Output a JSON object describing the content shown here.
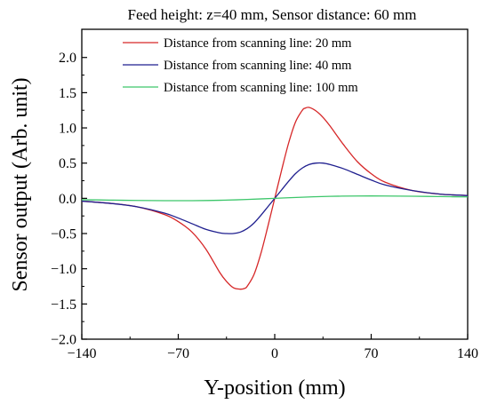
{
  "chart_data": {
    "type": "line",
    "title": "Feed height: z=40 mm, Sensor distance: 60 mm",
    "xlabel": "Y-position (mm)",
    "ylabel": "Sensor output (Arb. unit)",
    "xlim": [
      -140,
      140
    ],
    "ylim": [
      -2.0,
      2.4
    ],
    "xticks": [
      -140,
      -70,
      0,
      70,
      140
    ],
    "xtick_labels": [
      "−140",
      "−70",
      "0",
      "70",
      "140"
    ],
    "yticks": [
      -2.0,
      -1.5,
      -1.0,
      -0.5,
      0.0,
      0.5,
      1.0,
      1.5,
      2.0
    ],
    "ytick_labels": [
      "−2.0",
      "−1.5",
      "−1.0",
      "−0.5",
      "0.0",
      "0.5",
      "1.0",
      "1.5",
      "2.0"
    ],
    "grid": false,
    "legend_position": "top-right",
    "series": [
      {
        "name": "Distance from scanning line: 20 mm",
        "color": "#d62728",
        "x": [
          -140,
          -120,
          -100,
          -80,
          -70,
          -60,
          -50,
          -40,
          -35,
          -30,
          -25,
          -22,
          -20,
          -15,
          -10,
          -5,
          0,
          5,
          10,
          15,
          20,
          22,
          25,
          30,
          35,
          40,
          50,
          60,
          70,
          80,
          100,
          120,
          140
        ],
        "y": [
          -0.04,
          -0.07,
          -0.12,
          -0.23,
          -0.33,
          -0.48,
          -0.72,
          -1.05,
          -1.18,
          -1.27,
          -1.29,
          -1.28,
          -1.25,
          -1.08,
          -0.78,
          -0.4,
          0.0,
          0.4,
          0.78,
          1.08,
          1.25,
          1.28,
          1.29,
          1.24,
          1.15,
          1.03,
          0.76,
          0.52,
          0.35,
          0.23,
          0.11,
          0.06,
          0.04
        ]
      },
      {
        "name": "Distance from scanning line: 40 mm",
        "color": "#1f1f8f",
        "x": [
          -140,
          -120,
          -100,
          -80,
          -70,
          -60,
          -50,
          -40,
          -35,
          -30,
          -25,
          -20,
          -15,
          -10,
          -5,
          0,
          5,
          10,
          15,
          20,
          25,
          30,
          35,
          40,
          50,
          60,
          70,
          80,
          100,
          120,
          140
        ],
        "y": [
          -0.04,
          -0.07,
          -0.12,
          -0.21,
          -0.28,
          -0.36,
          -0.44,
          -0.49,
          -0.5,
          -0.5,
          -0.48,
          -0.43,
          -0.35,
          -0.24,
          -0.12,
          0.0,
          0.12,
          0.24,
          0.35,
          0.43,
          0.48,
          0.5,
          0.5,
          0.48,
          0.42,
          0.34,
          0.26,
          0.19,
          0.11,
          0.06,
          0.04
        ]
      },
      {
        "name": "Distance from scanning line: 100 mm",
        "color": "#3cc66a",
        "x": [
          -140,
          -120,
          -100,
          -80,
          -60,
          -40,
          -20,
          0,
          20,
          40,
          60,
          80,
          100,
          120,
          140
        ],
        "y": [
          -0.02,
          -0.025,
          -0.03,
          -0.033,
          -0.033,
          -0.028,
          -0.016,
          0.0,
          0.016,
          0.028,
          0.033,
          0.033,
          0.03,
          0.025,
          0.02
        ]
      }
    ]
  }
}
